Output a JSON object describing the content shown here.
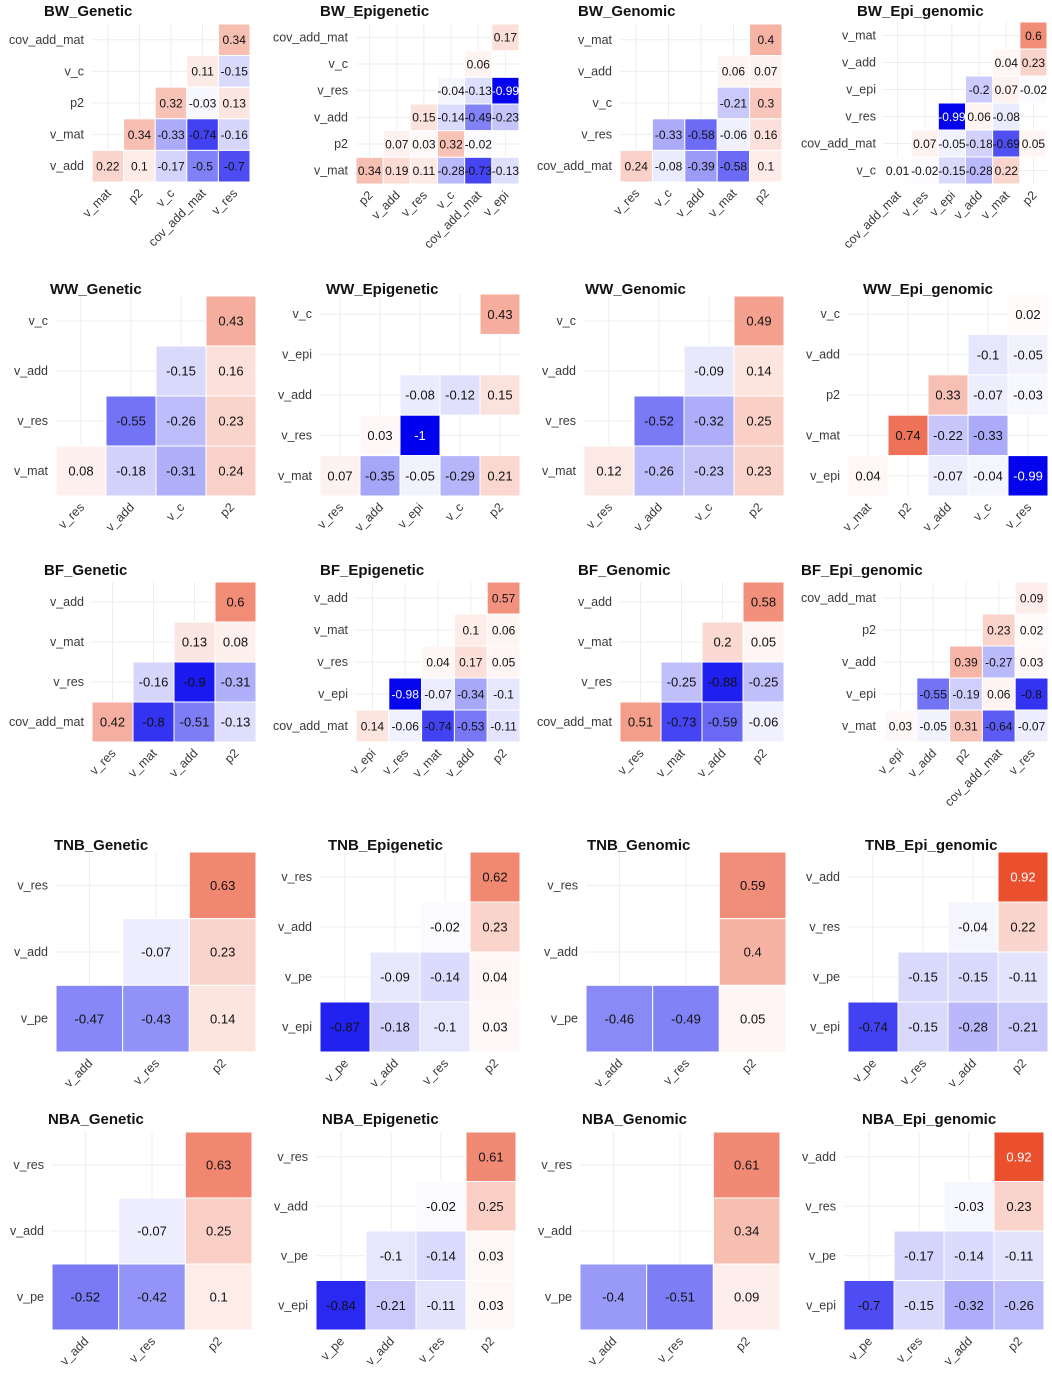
{
  "figure": {
    "colors": {
      "negative": "#0000ee",
      "zero": "#ffffff",
      "positive": "#e8401c",
      "text": "#111111",
      "axis_text": "#3a3a3a",
      "grid": "#ededed"
    }
  },
  "chart_data": [
    {
      "type": "heatmap",
      "title": "BW_Genetic",
      "rows": [
        "cov_add_mat",
        "v_c",
        "p2",
        "v_mat",
        "v_add"
      ],
      "columns": [
        "v_mat",
        "p2",
        "v_c",
        "cov_add_mat",
        "v_res"
      ],
      "values": [
        [
          null,
          null,
          null,
          null,
          0.34
        ],
        [
          null,
          null,
          null,
          0.11,
          -0.15
        ],
        [
          null,
          null,
          0.32,
          -0.03,
          0.13
        ],
        [
          null,
          0.34,
          -0.33,
          -0.74,
          -0.16
        ],
        [
          0.22,
          0.1,
          -0.17,
          -0.5,
          -0.7
        ]
      ]
    },
    {
      "type": "heatmap",
      "title": "BW_Epigenetic",
      "rows": [
        "cov_add_mat",
        "v_c",
        "v_res",
        "v_add",
        "p2",
        "v_mat"
      ],
      "columns": [
        "p2",
        "v_add",
        "v_res",
        "v_c",
        "cov_add_mat",
        "v_epi"
      ],
      "values": [
        [
          null,
          null,
          null,
          null,
          null,
          0.17
        ],
        [
          null,
          null,
          null,
          null,
          0.06,
          null
        ],
        [
          null,
          null,
          null,
          -0.04,
          -0.13,
          -0.99
        ],
        [
          null,
          null,
          0.15,
          -0.14,
          -0.49,
          -0.23
        ],
        [
          null,
          0.07,
          0.03,
          0.32,
          -0.02,
          null
        ],
        [
          0.34,
          0.19,
          0.11,
          -0.28,
          -0.73,
          -0.13
        ]
      ]
    },
    {
      "type": "heatmap",
      "title": "BW_Genomic",
      "rows": [
        "v_mat",
        "v_add",
        "v_c",
        "v_res",
        "cov_add_mat"
      ],
      "columns": [
        "v_res",
        "v_c",
        "v_add",
        "v_mat",
        "p2"
      ],
      "values": [
        [
          null,
          null,
          null,
          null,
          0.4
        ],
        [
          null,
          null,
          null,
          0.06,
          0.07
        ],
        [
          null,
          null,
          null,
          -0.21,
          0.3
        ],
        [
          null,
          -0.33,
          -0.58,
          -0.06,
          0.16
        ],
        [
          0.24,
          -0.08,
          -0.39,
          -0.58,
          0.1
        ]
      ]
    },
    {
      "type": "heatmap",
      "title": "BW_Epi_genomic",
      "rows": [
        "v_mat",
        "v_add",
        "v_epi",
        "v_res",
        "cov_add_mat",
        "v_c"
      ],
      "columns": [
        "cov_add_mat",
        "v_res",
        "v_epi",
        "v_add",
        "v_mat",
        "p2"
      ],
      "values": [
        [
          null,
          null,
          null,
          null,
          null,
          0.6
        ],
        [
          null,
          null,
          null,
          null,
          0.04,
          0.23
        ],
        [
          null,
          null,
          null,
          -0.2,
          0.07,
          -0.02
        ],
        [
          null,
          null,
          -0.99,
          0.06,
          -0.08,
          null
        ],
        [
          null,
          0.07,
          -0.05,
          -0.18,
          -0.69,
          0.05
        ],
        [
          0.01,
          -0.02,
          -0.15,
          -0.28,
          0.22,
          null
        ]
      ]
    },
    {
      "type": "heatmap",
      "title": "WW_Genetic",
      "rows": [
        "v_c",
        "v_add",
        "v_res",
        "v_mat"
      ],
      "columns": [
        "v_res",
        "v_add",
        "v_c",
        "p2"
      ],
      "values": [
        [
          null,
          null,
          null,
          0.43
        ],
        [
          null,
          null,
          -0.15,
          0.16
        ],
        [
          null,
          -0.55,
          -0.26,
          0.23
        ],
        [
          0.08,
          -0.18,
          -0.31,
          0.24
        ]
      ]
    },
    {
      "type": "heatmap",
      "title": "WW_Epigenetic",
      "rows": [
        "v_c",
        "v_epi",
        "v_add",
        "v_res",
        "v_mat"
      ],
      "columns": [
        "v_res",
        "v_add",
        "v_epi",
        "v_c",
        "p2"
      ],
      "values": [
        [
          null,
          null,
          null,
          null,
          0.43
        ],
        [
          null,
          null,
          null,
          null,
          null
        ],
        [
          null,
          null,
          -0.08,
          -0.12,
          0.15
        ],
        [
          null,
          0.03,
          -1,
          null,
          null
        ],
        [
          0.07,
          -0.35,
          -0.05,
          -0.29,
          0.21
        ]
      ]
    },
    {
      "type": "heatmap",
      "title": "WW_Genomic",
      "rows": [
        "v_c",
        "v_add",
        "v_res",
        "v_mat"
      ],
      "columns": [
        "v_res",
        "v_add",
        "v_c",
        "p2"
      ],
      "values": [
        [
          null,
          null,
          null,
          0.49
        ],
        [
          null,
          null,
          -0.09,
          0.14
        ],
        [
          null,
          -0.52,
          -0.32,
          0.25
        ],
        [
          0.12,
          -0.26,
          -0.23,
          0.23
        ]
      ]
    },
    {
      "type": "heatmap",
      "title": "WW_Epi_genomic",
      "rows": [
        "v_c",
        "v_add",
        "p2",
        "v_mat",
        "v_epi"
      ],
      "columns": [
        "v_mat",
        "p2",
        "v_add",
        "v_c",
        "v_res"
      ],
      "values": [
        [
          null,
          null,
          null,
          null,
          0.02
        ],
        [
          null,
          null,
          null,
          -0.1,
          -0.05
        ],
        [
          null,
          null,
          0.33,
          -0.07,
          -0.03
        ],
        [
          null,
          0.74,
          -0.22,
          -0.33,
          null
        ],
        [
          0.04,
          null,
          -0.07,
          -0.04,
          -0.99
        ]
      ]
    },
    {
      "type": "heatmap",
      "title": "BF_Genetic",
      "rows": [
        "v_add",
        "v_mat",
        "v_res",
        "cov_add_mat"
      ],
      "columns": [
        "v_res",
        "v_mat",
        "v_add",
        "p2"
      ],
      "values": [
        [
          null,
          null,
          null,
          0.6
        ],
        [
          null,
          null,
          0.13,
          0.08
        ],
        [
          null,
          -0.16,
          -0.9,
          -0.31
        ],
        [
          0.42,
          -0.8,
          -0.51,
          -0.13
        ]
      ]
    },
    {
      "type": "heatmap",
      "title": "BF_Epigenetic",
      "rows": [
        "v_add",
        "v_mat",
        "v_res",
        "v_epi",
        "cov_add_mat"
      ],
      "columns": [
        "v_epi",
        "v_res",
        "v_mat",
        "v_add",
        "p2"
      ],
      "values": [
        [
          null,
          null,
          null,
          null,
          0.57
        ],
        [
          null,
          null,
          null,
          0.1,
          0.06
        ],
        [
          null,
          null,
          0.04,
          0.17,
          0.05
        ],
        [
          null,
          -0.98,
          -0.07,
          -0.34,
          -0.1
        ],
        [
          0.14,
          -0.06,
          -0.74,
          -0.53,
          -0.11
        ]
      ]
    },
    {
      "type": "heatmap",
      "title": "BF_Genomic",
      "rows": [
        "v_add",
        "v_mat",
        "v_res",
        "cov_add_mat"
      ],
      "columns": [
        "v_res",
        "v_mat",
        "v_add",
        "p2"
      ],
      "values": [
        [
          null,
          null,
          null,
          0.58
        ],
        [
          null,
          null,
          0.2,
          0.05
        ],
        [
          null,
          -0.25,
          -0.88,
          -0.25
        ],
        [
          0.51,
          -0.73,
          -0.59,
          -0.06
        ]
      ]
    },
    {
      "type": "heatmap",
      "title": "BF_Epi_genomic",
      "rows": [
        "cov_add_mat",
        "p2",
        "v_add",
        "v_epi",
        "v_mat"
      ],
      "columns": [
        "v_epi",
        "v_add",
        "p2",
        "cov_add_mat",
        "v_res"
      ],
      "values": [
        [
          null,
          null,
          null,
          null,
          0.09
        ],
        [
          null,
          null,
          null,
          0.23,
          0.02
        ],
        [
          null,
          null,
          0.39,
          -0.27,
          0.03
        ],
        [
          null,
          -0.55,
          -0.19,
          0.06,
          -0.8
        ],
        [
          0.03,
          -0.05,
          0.31,
          -0.64,
          -0.07
        ]
      ]
    },
    {
      "type": "heatmap",
      "title": "TNB_Genetic",
      "rows": [
        "v_res",
        "v_add",
        "v_pe"
      ],
      "columns": [
        "v_add",
        "v_res",
        "p2"
      ],
      "values": [
        [
          null,
          null,
          0.63
        ],
        [
          null,
          -0.07,
          0.23
        ],
        [
          -0.47,
          -0.43,
          0.14
        ]
      ]
    },
    {
      "type": "heatmap",
      "title": "TNB_Epigenetic",
      "rows": [
        "v_res",
        "v_add",
        "v_pe",
        "v_epi"
      ],
      "columns": [
        "v_pe",
        "v_add",
        "v_res",
        "p2"
      ],
      "values": [
        [
          null,
          null,
          null,
          0.62
        ],
        [
          null,
          null,
          -0.02,
          0.23
        ],
        [
          null,
          -0.09,
          -0.14,
          0.04
        ],
        [
          -0.87,
          -0.18,
          -0.1,
          0.03
        ]
      ]
    },
    {
      "type": "heatmap",
      "title": "TNB_Genomic",
      "rows": [
        "v_res",
        "v_add",
        "v_pe"
      ],
      "columns": [
        "v_add",
        "v_res",
        "p2"
      ],
      "values": [
        [
          null,
          null,
          0.59
        ],
        [
          null,
          null,
          0.4
        ],
        [
          -0.46,
          -0.49,
          0.05
        ]
      ]
    },
    {
      "type": "heatmap",
      "title": "TNB_Epi_genomic",
      "rows": [
        "v_add",
        "v_res",
        "v_pe",
        "v_epi"
      ],
      "columns": [
        "v_pe",
        "v_res",
        "v_add",
        "p2"
      ],
      "values": [
        [
          null,
          null,
          null,
          0.92
        ],
        [
          null,
          null,
          -0.04,
          0.22
        ],
        [
          null,
          -0.15,
          -0.15,
          -0.11
        ],
        [
          -0.74,
          -0.15,
          -0.28,
          -0.21
        ]
      ]
    },
    {
      "type": "heatmap",
      "title": "NBA_Genetic",
      "rows": [
        "v_res",
        "v_add",
        "v_pe"
      ],
      "columns": [
        "v_add",
        "v_res",
        "p2"
      ],
      "values": [
        [
          null,
          null,
          0.63
        ],
        [
          null,
          -0.07,
          0.25
        ],
        [
          -0.52,
          -0.42,
          0.1
        ]
      ]
    },
    {
      "type": "heatmap",
      "title": "NBA_Epigenetic",
      "rows": [
        "v_res",
        "v_add",
        "v_pe",
        "v_epi"
      ],
      "columns": [
        "v_pe",
        "v_add",
        "v_res",
        "p2"
      ],
      "values": [
        [
          null,
          null,
          null,
          0.61
        ],
        [
          null,
          null,
          -0.02,
          0.25
        ],
        [
          null,
          -0.1,
          -0.14,
          0.03
        ],
        [
          -0.84,
          -0.21,
          -0.11,
          0.03
        ]
      ]
    },
    {
      "type": "heatmap",
      "title": "NBA_Genomic",
      "rows": [
        "v_res",
        "v_add",
        "v_pe"
      ],
      "columns": [
        "v_add",
        "v_res",
        "p2"
      ],
      "values": [
        [
          null,
          null,
          0.61
        ],
        [
          null,
          null,
          0.34
        ],
        [
          -0.4,
          -0.51,
          0.09
        ]
      ]
    },
    {
      "type": "heatmap",
      "title": "NBA_Epi_genomic",
      "rows": [
        "v_add",
        "v_res",
        "v_pe",
        "v_epi"
      ],
      "columns": [
        "v_pe",
        "v_res",
        "v_add",
        "p2"
      ],
      "values": [
        [
          null,
          null,
          null,
          0.92
        ],
        [
          null,
          null,
          -0.03,
          0.23
        ],
        [
          null,
          -0.17,
          -0.14,
          -0.11
        ],
        [
          -0.7,
          -0.15,
          -0.32,
          -0.26
        ]
      ]
    }
  ]
}
